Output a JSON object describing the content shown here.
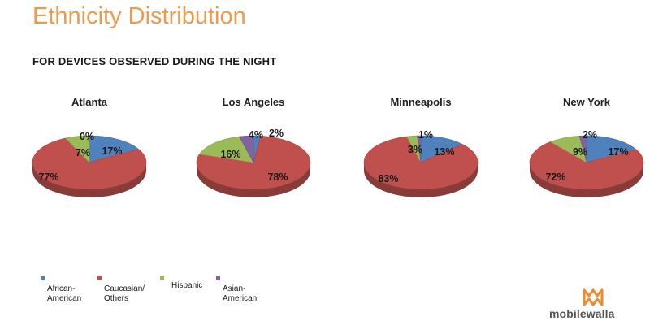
{
  "title": "Ethnicity Distribution",
  "subtitle": "FOR DEVICES OBSERVED DURING THE NIGHT",
  "colors": {
    "title": "#ee9a4d",
    "african_american": "#4f81bd",
    "caucasian_others": "#c0504d",
    "hispanic": "#9bbb59",
    "asian_american": "#8064a2"
  },
  "legend": [
    {
      "key": "african_american",
      "label": "African-\nAmerican"
    },
    {
      "key": "caucasian_others",
      "label": "Caucasian/\nOthers"
    },
    {
      "key": "hispanic",
      "label": "Hispanic"
    },
    {
      "key": "asian_american",
      "label": "Asian-\nAmerican"
    }
  ],
  "logo": {
    "text": "mobilewalla",
    "icon": "mobilewalla-logo-icon"
  },
  "chart_data": [
    {
      "type": "pie",
      "title": "Atlanta",
      "series": [
        {
          "name": "African-American",
          "value": 17,
          "label": "17%"
        },
        {
          "name": "Caucasian/Others",
          "value": 77,
          "label": "77%"
        },
        {
          "name": "Hispanic",
          "value": 7,
          "label": "7%"
        },
        {
          "name": "Asian-American",
          "value": 0,
          "label": "0%"
        }
      ]
    },
    {
      "type": "pie",
      "title": "Los Angeles",
      "series": [
        {
          "name": "African-American",
          "value": 2,
          "label": "2%"
        },
        {
          "name": "Caucasian/Others",
          "value": 78,
          "label": "78%"
        },
        {
          "name": "Hispanic",
          "value": 16,
          "label": "16%"
        },
        {
          "name": "Asian-American",
          "value": 4,
          "label": "4%"
        }
      ]
    },
    {
      "type": "pie",
      "title": "Minneapolis",
      "series": [
        {
          "name": "African-American",
          "value": 13,
          "label": "13%"
        },
        {
          "name": "Caucasian/Others",
          "value": 83,
          "label": "83%"
        },
        {
          "name": "Hispanic",
          "value": 3,
          "label": "3%"
        },
        {
          "name": "Asian-American",
          "value": 1,
          "label": "1%"
        }
      ]
    },
    {
      "type": "pie",
      "title": "New York",
      "series": [
        {
          "name": "African-American",
          "value": 17,
          "label": "17%"
        },
        {
          "name": "Caucasian/Others",
          "value": 72,
          "label": "72%"
        },
        {
          "name": "Hispanic",
          "value": 9,
          "label": "9%"
        },
        {
          "name": "Asian-American",
          "value": 2,
          "label": "2%"
        }
      ]
    }
  ]
}
